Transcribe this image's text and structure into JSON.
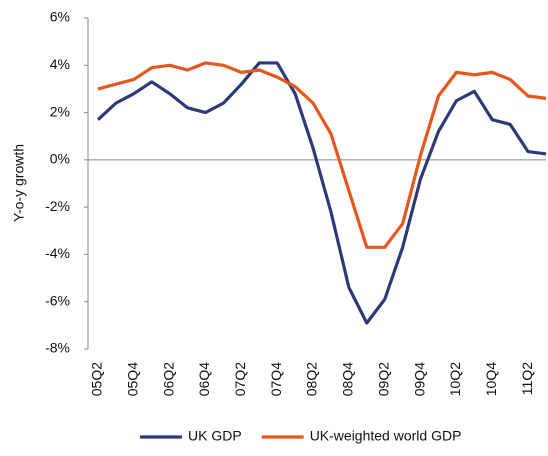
{
  "chart_data": {
    "type": "line",
    "y_label": "Y-o-y growth",
    "categories": [
      "05Q2",
      null,
      "05Q4",
      null,
      "06Q2",
      null,
      "06Q4",
      null,
      "07Q2",
      null,
      "07Q4",
      null,
      "08Q2",
      null,
      "08Q4",
      null,
      "09Q2",
      null,
      "09Q4",
      null,
      "10Q2",
      null,
      "10Q4",
      null,
      "11Q2",
      null
    ],
    "series": [
      {
        "name": "UK GDP",
        "color": "#2e3a78",
        "values": [
          1.7,
          2.4,
          2.8,
          3.3,
          2.8,
          2.2,
          2.0,
          2.4,
          3.2,
          4.1,
          4.1,
          2.8,
          0.5,
          -2.2,
          -5.4,
          -6.9,
          -5.9,
          -3.7,
          -0.8,
          1.2,
          2.5,
          2.9,
          1.7,
          1.5,
          0.35,
          0.25
        ]
      },
      {
        "name": "UK-weighted world GDP",
        "color": "#e8561f",
        "values": [
          3.0,
          3.2,
          3.4,
          3.9,
          4.0,
          3.8,
          4.1,
          4.0,
          3.7,
          3.8,
          3.5,
          3.1,
          2.4,
          1.1,
          -1.3,
          -3.7,
          -3.7,
          -2.7,
          0.2,
          2.7,
          3.7,
          3.6,
          3.7,
          3.4,
          2.7,
          2.6
        ]
      }
    ],
    "ylim": [
      -8,
      6
    ],
    "yticks": [
      {
        "value": -8,
        "label": "-8%"
      },
      {
        "value": -6,
        "label": "-6%"
      },
      {
        "value": -4,
        "label": "-4%"
      },
      {
        "value": -2,
        "label": "-2%"
      },
      {
        "value": 0,
        "label": "0%"
      },
      {
        "value": 2,
        "label": "2%"
      },
      {
        "value": 4,
        "label": "4%"
      },
      {
        "value": 6,
        "label": "6%"
      }
    ],
    "legend": "bottom"
  }
}
